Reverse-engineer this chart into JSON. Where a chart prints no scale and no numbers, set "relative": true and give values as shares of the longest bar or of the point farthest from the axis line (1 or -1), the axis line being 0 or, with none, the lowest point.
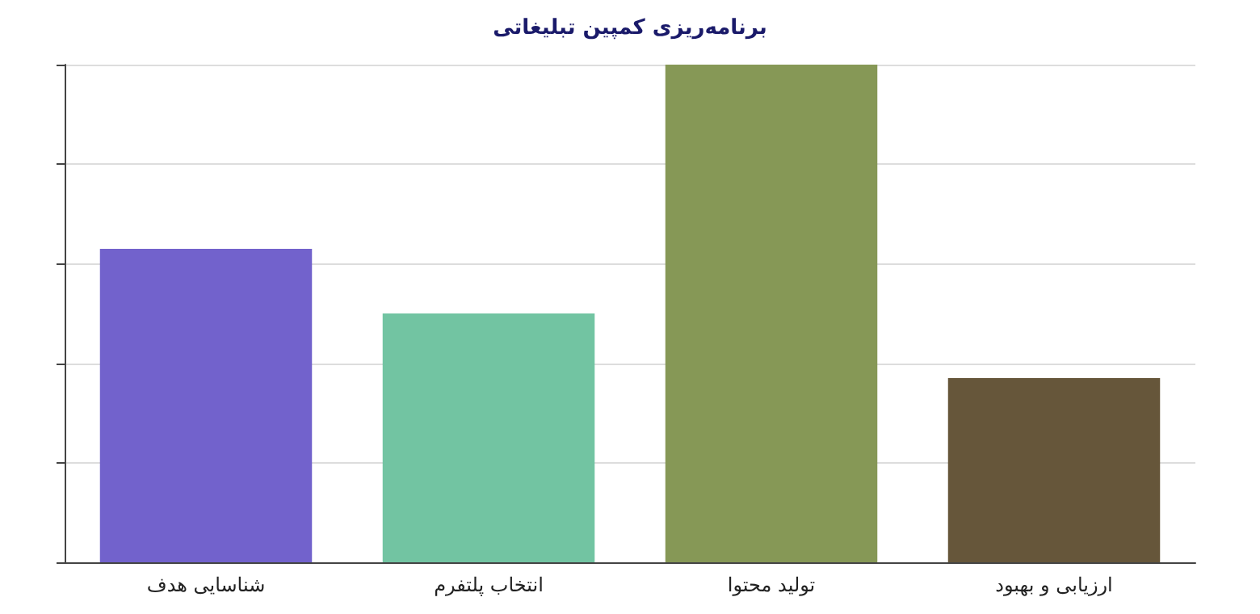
{
  "chart_data": {
    "type": "bar",
    "title": "برنامه‌ریزی کمپین تبلیغاتی",
    "categories": [
      "شناسایی هدف",
      "انتخاب پلتفرم",
      "تولید محتوا",
      "ارزیابی و بهبود"
    ],
    "values": [
      0.63,
      0.5,
      1,
      0.37
    ],
    "colors": [
      "#7262cc",
      "#72c4a2",
      "#869856",
      "#66563a"
    ],
    "relative": true,
    "grid": "y"
  }
}
